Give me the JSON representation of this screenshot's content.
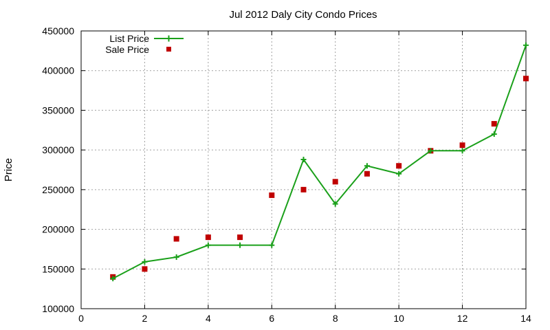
{
  "chart_data": {
    "type": "line",
    "title": "Jul 2012 Daly City Condo Prices",
    "xlabel": "",
    "ylabel": "Price",
    "xlim": [
      0,
      14
    ],
    "ylim": [
      100000,
      450000
    ],
    "x_ticks": [
      "0",
      "2",
      "4",
      "6",
      "8",
      "10",
      "12",
      "14"
    ],
    "y_ticks": [
      "100000",
      "150000",
      "200000",
      "250000",
      "300000",
      "350000",
      "400000",
      "450000"
    ],
    "grid": true,
    "legend_position": "top-left",
    "series": [
      {
        "name": "List Price",
        "style": "line-with-plus-markers",
        "color": "#1aa01a",
        "x": [
          1,
          2,
          3,
          4,
          5,
          6,
          7,
          8,
          9,
          10,
          11,
          12,
          13,
          14
        ],
        "y": [
          138000,
          159000,
          165000,
          180000,
          180000,
          180000,
          288000,
          232000,
          280000,
          270000,
          299000,
          299000,
          320000,
          432000
        ]
      },
      {
        "name": "Sale Price",
        "style": "square-markers",
        "color": "#c00000",
        "x": [
          1,
          2,
          3,
          4,
          5,
          6,
          7,
          8,
          9,
          10,
          11,
          12,
          13,
          14
        ],
        "y": [
          140000,
          150000,
          188000,
          190000,
          190000,
          243000,
          250000,
          260000,
          270000,
          280000,
          299000,
          306000,
          333000,
          390000
        ]
      }
    ]
  }
}
